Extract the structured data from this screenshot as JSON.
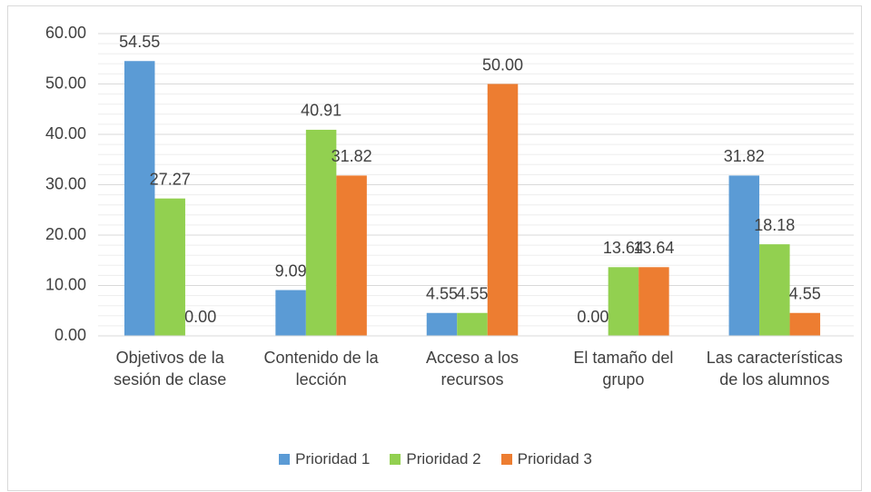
{
  "chart_data": {
    "type": "bar",
    "categories": [
      "Objetivos de la sesión de clase",
      "Contenido de la lección",
      "Acceso a los recursos",
      "El tamaño del grupo",
      "Las características de los alumnos"
    ],
    "series": [
      {
        "name": "Prioridad 1",
        "color": "#5b9bd5",
        "values": [
          54.55,
          9.09,
          4.55,
          0,
          31.82
        ],
        "value_labels": [
          "54.55",
          "9.09",
          "4.55",
          "0.00",
          "31.82"
        ]
      },
      {
        "name": "Prioridad 2",
        "color": "#92d050",
        "values": [
          27.27,
          40.91,
          4.55,
          13.64,
          18.18
        ],
        "value_labels": [
          "27.27",
          "40.91",
          "4.55",
          "13.64",
          "18.18"
        ]
      },
      {
        "name": "Prioridad 3",
        "color": "#ed7d31",
        "values": [
          0,
          31.82,
          50,
          13.64,
          4.55
        ],
        "value_labels": [
          "0.00",
          "31.82",
          "50.00",
          "13.64",
          "4.55"
        ]
      }
    ],
    "ylim": [
      0,
      60
    ],
    "yticks": [
      {
        "value": 0,
        "label": "0.00"
      },
      {
        "value": 10,
        "label": "10.00"
      },
      {
        "value": 20,
        "label": "20.00"
      },
      {
        "value": 30,
        "label": "30.00"
      },
      {
        "value": 40,
        "label": "40.00"
      },
      {
        "value": 50,
        "label": "50.00"
      },
      {
        "value": 60,
        "label": "60.00"
      }
    ],
    "minor_yticks": [
      2,
      4,
      6,
      8,
      12,
      14,
      16,
      18,
      22,
      24,
      26,
      28,
      32,
      34,
      36,
      38,
      42,
      44,
      46,
      48,
      52,
      54,
      56,
      58
    ],
    "grid": true,
    "legend": "bottom"
  }
}
